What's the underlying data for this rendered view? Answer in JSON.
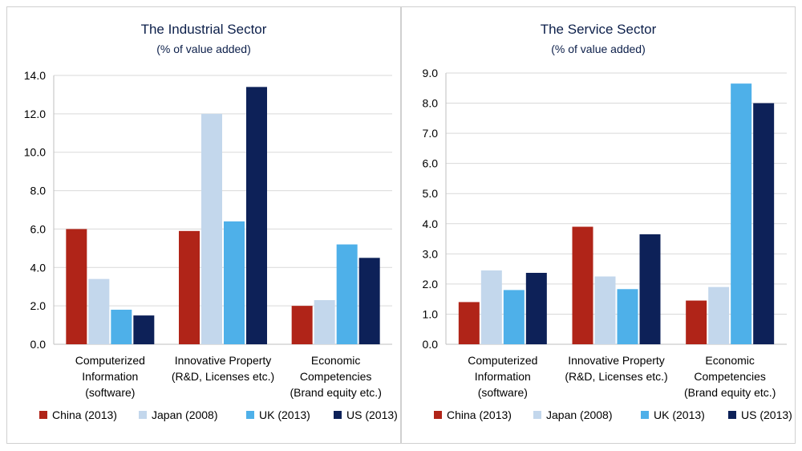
{
  "colors": {
    "China (2013)": "#b02418",
    "Japan (2008)": "#c3d7ec",
    "UK (2013)": "#4eb0e9",
    "US (2013)": "#0d2158"
  },
  "chart_data": [
    {
      "type": "bar",
      "title": "The Industrial Sector",
      "subtitle": "(% of value added)",
      "categories": [
        [
          "Computerized",
          "Information",
          "(software)"
        ],
        [
          "Innovative Property",
          "(R&D, Licenses etc.)"
        ],
        [
          "Economic",
          "Competencies",
          "(Brand equity etc.)"
        ]
      ],
      "yticks": [
        "0.0",
        "2.0",
        "4.0",
        "6.0",
        "8.0",
        "10.0",
        "12.0",
        "14.0"
      ],
      "ylim": [
        0,
        14
      ],
      "grid": true,
      "legend_position": "bottom",
      "series": [
        {
          "name": "China (2013)",
          "values": [
            6.0,
            5.9,
            2.0
          ]
        },
        {
          "name": "Japan (2008)",
          "values": [
            3.4,
            12.0,
            2.3
          ]
        },
        {
          "name": "UK (2013)",
          "values": [
            1.8,
            6.4,
            5.2
          ]
        },
        {
          "name": "US (2013)",
          "values": [
            1.5,
            13.4,
            4.5
          ]
        }
      ]
    },
    {
      "type": "bar",
      "title": "The Service Sector",
      "subtitle": "(% of value added)",
      "categories": [
        [
          "Computerized",
          "Information",
          "(software)"
        ],
        [
          "Innovative Property",
          "(R&D, Licenses etc.)"
        ],
        [
          "Economic",
          "Competencies",
          "(Brand equity etc.)"
        ]
      ],
      "yticks": [
        "0.0",
        "1.0",
        "2.0",
        "3.0",
        "4.0",
        "5.0",
        "6.0",
        "7.0",
        "8.0",
        "9.0"
      ],
      "ylim": [
        0,
        9
      ],
      "grid": true,
      "legend_position": "bottom",
      "series": [
        {
          "name": "China (2013)",
          "values": [
            1.4,
            3.9,
            1.45
          ]
        },
        {
          "name": "Japan (2008)",
          "values": [
            2.45,
            2.25,
            1.9
          ]
        },
        {
          "name": "UK (2013)",
          "values": [
            1.8,
            1.83,
            8.65
          ]
        },
        {
          "name": "US (2013)",
          "values": [
            2.37,
            3.65,
            8.0
          ]
        }
      ]
    }
  ]
}
